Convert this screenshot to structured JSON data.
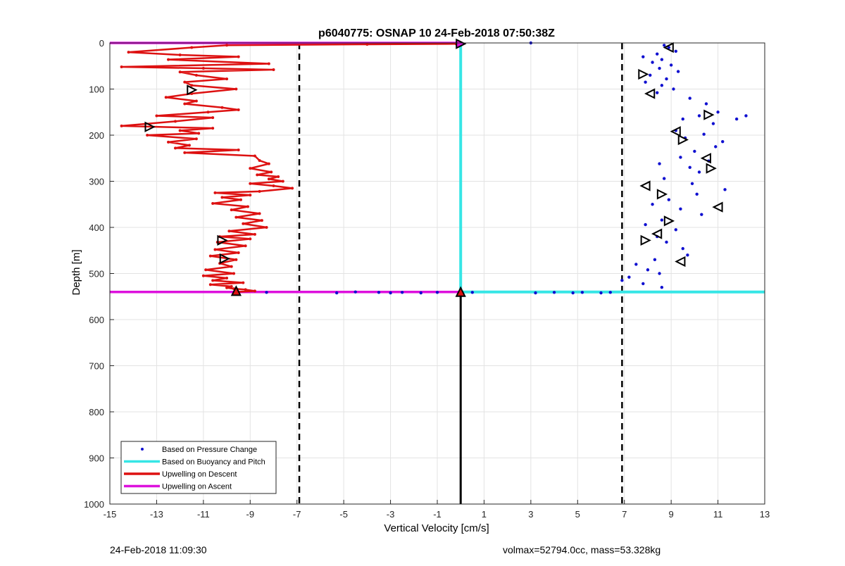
{
  "chart_data": {
    "type": "line",
    "title": "p6040775: OSNAP 10 24-Feb-2018 07:50:38Z",
    "xlabel": "Vertical Velocity [cm/s]",
    "ylabel": "Depth [m]",
    "xlim": [
      -15,
      13
    ],
    "ylim": [
      0,
      1000
    ],
    "y_reversed": true,
    "grid": true,
    "legend_position": "bottom-left",
    "x_ticks": [
      -15,
      -13,
      -11,
      -9,
      -7,
      -5,
      -3,
      -1,
      1,
      3,
      5,
      7,
      9,
      11,
      13
    ],
    "y_ticks": [
      0,
      100,
      200,
      300,
      400,
      500,
      600,
      700,
      800,
      900,
      1000
    ],
    "legend": [
      "Based on Pressure Change",
      "Based on Buoyancy and Pitch",
      "Upwelling on Descent",
      "Upwelling on Ascent"
    ],
    "colors": {
      "pressure": "#1010d0",
      "buoyancy": "#36e6e6",
      "descent": "#dd1111",
      "ascent": "#dd11dd",
      "reference": "#000000"
    },
    "series": [
      {
        "name": "Upwelling on Descent",
        "x": [
          -0.2,
          -4,
          -10,
          -11.5,
          -14.2,
          -12,
          -9.5,
          -12.5,
          -8.2,
          -14.5,
          -11,
          -8,
          -12,
          -11.3,
          -10,
          -11.8,
          -11.5,
          -9.6,
          -11.5,
          -12.6,
          -11.3,
          -11.8,
          -10.2,
          -9.5,
          -10.8,
          -13,
          -10.6,
          -12.2,
          -14.5,
          -10.6,
          -12,
          -11.2,
          -13.4,
          -11.3,
          -12.5,
          -11.6,
          -12.2,
          -9.5,
          -11.8,
          -8.8,
          -8.6,
          -8.2,
          -9,
          -8.1,
          -8.7,
          -7.8,
          -8.2,
          -7.6,
          -9,
          -8,
          -7.2,
          -8.6,
          -10.5,
          -9,
          -10.2,
          -9.4,
          -10.6,
          -9.1,
          -9.8,
          -8.6,
          -9.6,
          -8.5,
          -9.3,
          -8.3,
          -9.9,
          -8.8,
          -10.3,
          -9,
          -10.4,
          -9.2,
          -10.5,
          -9.5,
          -10.7,
          -9.6,
          -10.3,
          -9.8,
          -10.9,
          -9.7,
          -11,
          -10,
          -10.6,
          -9.3,
          -10.7,
          -9.8,
          -10,
          -9.7,
          -9.2,
          -8.8,
          -9.6
        ],
        "y": [
          2,
          3,
          5,
          10,
          20,
          26,
          30,
          36,
          45,
          52,
          55,
          58,
          63,
          70,
          78,
          85,
          92,
          100,
          110,
          118,
          126,
          132,
          140,
          145,
          150,
          158,
          162,
          170,
          180,
          185,
          190,
          196,
          200,
          208,
          215,
          222,
          228,
          232,
          238,
          245,
          255,
          262,
          272,
          280,
          286,
          290,
          295,
          300,
          305,
          310,
          315,
          322,
          325,
          330,
          335,
          340,
          348,
          355,
          362,
          370,
          378,
          385,
          392,
          400,
          408,
          415,
          420,
          425,
          432,
          440,
          448,
          455,
          462,
          470,
          478,
          485,
          492,
          500,
          505,
          510,
          515,
          520,
          524,
          528,
          531,
          533,
          535,
          538,
          540
        ]
      },
      {
        "name": "Upwelling on Ascent",
        "x": [
          -15,
          -9.8,
          0
        ],
        "y": [
          540,
          540,
          540
        ]
      },
      {
        "name": "Upwelling on Ascent (surface)",
        "x": [
          -15,
          0
        ],
        "y": [
          0,
          0
        ]
      },
      {
        "name": "Based on Buoyancy and Pitch",
        "x": [
          0,
          0,
          0,
          13
        ],
        "y": [
          0,
          540,
          540,
          540
        ]
      },
      {
        "name": "Based on Pressure Change",
        "x": [
          0,
          3,
          8.7,
          8.9,
          9.2,
          8.4,
          7.8,
          8.6,
          8.2,
          9,
          8.5,
          9.3,
          8.1,
          8.8,
          7.9,
          8.6,
          9.1,
          8.4,
          9.8,
          10.5,
          11,
          10.2,
          9.5,
          12.2,
          11.8,
          10.8,
          9.2,
          10.4,
          9.6,
          11.2,
          10.9,
          10,
          9.4,
          10.6,
          8.5,
          9.8,
          10.2,
          8.7,
          9.9,
          11.3,
          10.1,
          8.9,
          8.2,
          9.4,
          10.3,
          8.6,
          7.9,
          9.2,
          8.4,
          8.8,
          9.5,
          9.7,
          8.3,
          7.5,
          8,
          8.5,
          7.2,
          6.9,
          7.8,
          8.6,
          -1,
          -3,
          -3.5,
          -4.5,
          -5.3,
          -2.5,
          -1.7,
          0.5,
          3.2,
          4,
          4.8,
          5.2,
          6,
          6.4,
          -8.3
        ],
        "y": [
          1,
          0,
          5,
          10,
          18,
          24,
          30,
          36,
          42,
          48,
          55,
          62,
          70,
          78,
          85,
          92,
          100,
          108,
          120,
          132,
          150,
          158,
          165,
          158,
          165,
          175,
          190,
          198,
          206,
          214,
          225,
          235,
          248,
          256,
          262,
          270,
          280,
          294,
          305,
          318,
          328,
          340,
          350,
          360,
          372,
          384,
          394,
          405,
          420,
          432,
          446,
          460,
          470,
          480,
          492,
          500,
          508,
          515,
          522,
          530,
          541,
          542,
          541,
          540,
          542,
          541,
          542,
          541,
          542,
          541,
          542,
          541,
          542,
          541,
          541
        ]
      },
      {
        "name": "Descent markers",
        "x": [
          0,
          -11.5,
          -13.3,
          -10.2,
          -10.1,
          -9.6
        ],
        "y": [
          2,
          102,
          182,
          428,
          468,
          538
        ]
      },
      {
        "name": "Ascent markers",
        "x": [
          0,
          8.9,
          7.8,
          8.1,
          10.6,
          9.2,
          9.5,
          10.5,
          10.7,
          7.9,
          8.6,
          11,
          8.9,
          8.4,
          7.9,
          9.4
        ],
        "y": [
          540,
          10,
          68,
          110,
          156,
          192,
          210,
          250,
          272,
          310,
          328,
          356,
          386,
          414,
          428,
          474
        ]
      },
      {
        "name": "Reference",
        "x": [
          -6.9,
          -6.9,
          6.9,
          6.9,
          0,
          0
        ],
        "y": [
          0,
          1000,
          0,
          1000,
          540,
          1000
        ]
      }
    ]
  },
  "footer": {
    "left": "24-Feb-2018 11:09:30",
    "right": "volmax=52794.0cc, mass=53.328kg"
  }
}
